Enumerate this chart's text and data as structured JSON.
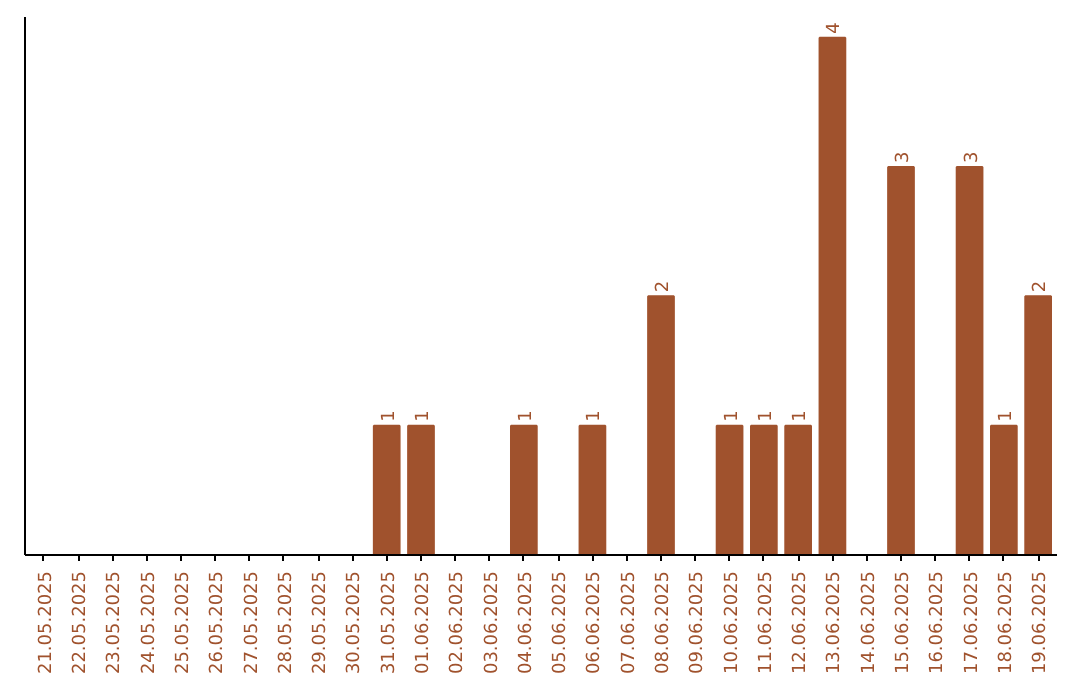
{
  "chart_data": {
    "type": "bar",
    "categories": [
      "21.05.2025",
      "22.05.2025",
      "23.05.2025",
      "24.05.2025",
      "25.05.2025",
      "26.05.2025",
      "27.05.2025",
      "28.05.2025",
      "29.05.2025",
      "30.05.2025",
      "31.05.2025",
      "01.06.2025",
      "02.06.2025",
      "03.06.2025",
      "04.06.2025",
      "05.06.2025",
      "06.06.2025",
      "07.06.2025",
      "08.06.2025",
      "09.06.2025",
      "10.06.2025",
      "11.06.2025",
      "12.06.2025",
      "13.06.2025",
      "14.06.2025",
      "15.06.2025",
      "16.06.2025",
      "17.06.2025",
      "18.06.2025",
      "19.06.2025"
    ],
    "values": [
      0,
      0,
      0,
      0,
      0,
      0,
      0,
      0,
      0,
      0,
      1,
      1,
      0,
      0,
      1,
      0,
      1,
      0,
      2,
      0,
      1,
      1,
      1,
      4,
      0,
      3,
      0,
      3,
      1,
      2
    ],
    "value_labels": [
      null,
      null,
      null,
      null,
      null,
      null,
      null,
      null,
      null,
      null,
      "1",
      "1",
      null,
      null,
      "1",
      null,
      "1",
      null,
      "2",
      null,
      "1",
      "1",
      "1",
      "4",
      null,
      "3",
      null,
      "3",
      "1",
      "2"
    ],
    "color": "#a0522d"
  }
}
